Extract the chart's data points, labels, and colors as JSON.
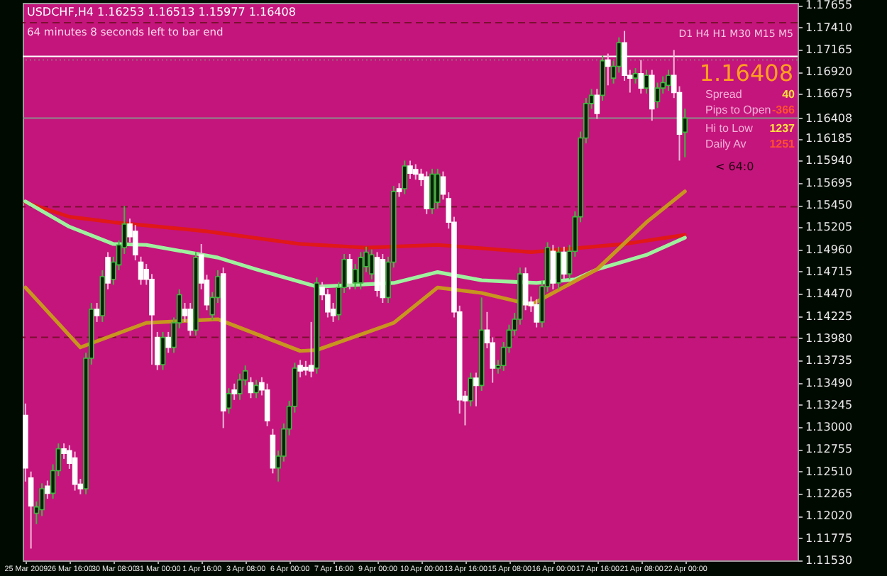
{
  "chart_data": {
    "type": "candlestick",
    "title": "USDCHF,H4  1.16253 1.16513 1.15977 1.16408",
    "categories": [
      "25 Mar 2009",
      null,
      null,
      null,
      null,
      null,
      null,
      null,
      "26 Mar 16:00",
      null,
      null,
      null,
      null,
      null,
      null,
      null,
      "30 Mar 08:00",
      null,
      null,
      null,
      null,
      null,
      null,
      null,
      "31 Mar 00:00",
      null,
      null,
      null,
      null,
      null,
      null,
      null,
      "1 Apr 16:00",
      null,
      null,
      null,
      null,
      null,
      null,
      null,
      "3 Apr 08:00",
      null,
      null,
      null,
      null,
      null,
      null,
      null,
      "6 Apr 00:00",
      null,
      null,
      null,
      null,
      null,
      null,
      null,
      "7 Apr 16:00",
      null,
      null,
      null,
      null,
      null,
      null,
      null,
      "9 Apr 00:00",
      null,
      null,
      null,
      null,
      null,
      null,
      null,
      "10 Apr 00:00",
      null,
      null,
      null,
      null,
      null,
      null,
      null,
      "13 Apr 16:00",
      null,
      null,
      null,
      null,
      null,
      null,
      null,
      "15 Apr 08:00",
      null,
      null,
      null,
      null,
      null,
      null,
      null,
      "16 Apr 00:00",
      null,
      null,
      null,
      null,
      null,
      null,
      null,
      "17 Apr 16:00",
      null,
      null,
      null,
      null,
      null,
      null,
      null,
      "21 Apr 08:00",
      null,
      null,
      null,
      null,
      null,
      null,
      null,
      "22 Apr 00:00",
      null,
      null,
      null,
      null,
      null,
      null,
      null,
      null,
      null,
      null,
      null,
      null,
      null,
      null,
      null,
      null,
      null,
      null,
      null,
      null
    ],
    "ohlc": [
      [
        1.1313,
        1.1326,
        1.124,
        1.1255
      ],
      [
        1.1244,
        1.1251,
        1.1166,
        1.1213
      ],
      [
        1.1205,
        1.1218,
        1.1193,
        1.1212
      ],
      [
        1.1209,
        1.1238,
        1.1202,
        1.1232
      ],
      [
        1.1235,
        1.1241,
        1.1221,
        1.1227
      ],
      [
        1.1227,
        1.1259,
        1.1221,
        1.1252
      ],
      [
        1.1252,
        1.1282,
        1.1246,
        1.1276
      ],
      [
        1.1276,
        1.1282,
        1.1265,
        1.1271
      ],
      [
        1.1274,
        1.128,
        1.1254,
        1.126
      ],
      [
        1.1266,
        1.1273,
        1.123,
        1.1237
      ],
      [
        1.1237,
        1.1243,
        1.1226,
        1.1232
      ],
      [
        1.1232,
        1.1382,
        1.1226,
        1.1376
      ],
      [
        1.1376,
        1.1437,
        1.1369,
        1.143
      ],
      [
        1.143,
        1.1437,
        1.1416,
        1.1423
      ],
      [
        1.1423,
        1.1473,
        1.1416,
        1.1466
      ],
      [
        1.1487,
        1.1493,
        1.1452,
        1.1459
      ],
      [
        1.1463,
        1.1488,
        1.1457,
        1.1482
      ],
      [
        1.1479,
        1.1506,
        1.1473,
        1.1501
      ],
      [
        1.1498,
        1.1544,
        1.1491,
        1.1524
      ],
      [
        1.1524,
        1.153,
        1.1504,
        1.151
      ],
      [
        1.1516,
        1.1523,
        1.1484,
        1.149
      ],
      [
        1.1482,
        1.1488,
        1.1457,
        1.1463
      ],
      [
        1.1474,
        1.148,
        1.1457,
        1.1463
      ],
      [
        1.1463,
        1.1469,
        1.1369,
        1.1424
      ],
      [
        1.1399,
        1.1405,
        1.1363,
        1.1369
      ],
      [
        1.1369,
        1.1405,
        1.1363,
        1.1399
      ],
      [
        1.1399,
        1.1405,
        1.1382,
        1.1388
      ],
      [
        1.1388,
        1.1421,
        1.1382,
        1.1415
      ],
      [
        1.1415,
        1.1452,
        1.1409,
        1.1446
      ],
      [
        1.143,
        1.1437,
        1.1416,
        1.1423
      ],
      [
        1.143,
        1.1437,
        1.1401,
        1.1407
      ],
      [
        1.1407,
        1.1493,
        1.1401,
        1.1487
      ],
      [
        1.149,
        1.1502,
        1.1452,
        1.1459
      ],
      [
        1.1462,
        1.1468,
        1.1429,
        1.1435
      ],
      [
        1.1424,
        1.1449,
        1.1418,
        1.1443
      ],
      [
        1.1443,
        1.1473,
        1.1437,
        1.1466
      ],
      [
        1.1469,
        1.1476,
        1.1299,
        1.1318
      ],
      [
        1.1321,
        1.1343,
        1.1315,
        1.1337
      ],
      [
        1.1341,
        1.1348,
        1.133,
        1.1337
      ],
      [
        1.1337,
        1.1359,
        1.133,
        1.1352
      ],
      [
        1.1352,
        1.1368,
        1.1346,
        1.1362
      ],
      [
        1.1349,
        1.1355,
        1.1332,
        1.1338
      ],
      [
        1.1338,
        1.1352,
        1.1332,
        1.1346
      ],
      [
        1.1349,
        1.1355,
        1.1335,
        1.1341
      ],
      [
        1.1341,
        1.1348,
        1.1301,
        1.1307
      ],
      [
        1.1291,
        1.1298,
        1.1249,
        1.1255
      ],
      [
        1.1255,
        1.1274,
        1.124,
        1.1268
      ],
      [
        1.1268,
        1.1304,
        1.1262,
        1.1298
      ],
      [
        1.1298,
        1.1329,
        1.1291,
        1.1323
      ],
      [
        1.1323,
        1.1371,
        1.1316,
        1.1365
      ],
      [
        1.1368,
        1.1374,
        1.1355,
        1.1362
      ],
      [
        1.1366,
        1.1373,
        1.1357,
        1.1363
      ],
      [
        1.1368,
        1.1416,
        1.1355,
        1.1362
      ],
      [
        1.1365,
        1.1465,
        1.1359,
        1.1459
      ],
      [
        1.1454,
        1.146,
        1.144,
        1.1446
      ],
      [
        1.1446,
        1.1452,
        1.1421,
        1.1427
      ],
      [
        1.143,
        1.1437,
        1.1416,
        1.1423
      ],
      [
        1.1424,
        1.146,
        1.1418,
        1.1454
      ],
      [
        1.1454,
        1.1491,
        1.1448,
        1.1485
      ],
      [
        1.1485,
        1.1491,
        1.1452,
        1.1459
      ],
      [
        1.1459,
        1.148,
        1.1452,
        1.1474
      ],
      [
        1.1459,
        1.1493,
        1.1452,
        1.1487
      ],
      [
        1.1477,
        1.1499,
        1.1471,
        1.1493
      ],
      [
        1.1469,
        1.1496,
        1.1463,
        1.149
      ],
      [
        1.1487,
        1.1493,
        1.1444,
        1.1451
      ],
      [
        1.1485,
        1.1491,
        1.1437,
        1.1443
      ],
      [
        1.1443,
        1.1488,
        1.1437,
        1.1482
      ],
      [
        1.1482,
        1.1566,
        1.1476,
        1.156
      ],
      [
        1.1563,
        1.1569,
        1.1554,
        1.156
      ],
      [
        1.1563,
        1.1594,
        1.1557,
        1.1588
      ],
      [
        1.1588,
        1.1594,
        1.1574,
        1.158
      ],
      [
        1.1584,
        1.159,
        1.1573,
        1.1579
      ],
      [
        1.1579,
        1.1585,
        1.1566,
        1.1573
      ],
      [
        1.1576,
        1.1582,
        1.1535,
        1.1541
      ],
      [
        1.1541,
        1.1585,
        1.1535,
        1.1579
      ],
      [
        1.1548,
        1.1585,
        1.1541,
        1.1579
      ],
      [
        1.1576,
        1.1582,
        1.1551,
        1.1557
      ],
      [
        1.1552,
        1.1559,
        1.1519,
        1.1526
      ],
      [
        1.1526,
        1.1532,
        1.1421,
        1.1427
      ],
      [
        1.1427,
        1.1434,
        1.1315,
        1.133
      ],
      [
        1.1334,
        1.134,
        1.1302,
        1.1329
      ],
      [
        1.1329,
        1.136,
        1.1323,
        1.1354
      ],
      [
        1.1354,
        1.136,
        1.1323,
        1.1346
      ],
      [
        1.1346,
        1.1443,
        1.134,
        1.1407
      ],
      [
        1.1407,
        1.1427,
        1.1387,
        1.1393
      ],
      [
        1.1393,
        1.1399,
        1.1349,
        1.1365
      ],
      [
        1.1365,
        1.1374,
        1.1359,
        1.1368
      ],
      [
        1.1368,
        1.1394,
        1.1362,
        1.1388
      ],
      [
        1.1388,
        1.1413,
        1.1382,
        1.1407
      ],
      [
        1.1407,
        1.1426,
        1.1401,
        1.1419
      ],
      [
        1.1419,
        1.1476,
        1.1413,
        1.1469
      ],
      [
        1.1469,
        1.1476,
        1.1429,
        1.1435
      ],
      [
        1.1438,
        1.1444,
        1.1427,
        1.1434
      ],
      [
        1.1435,
        1.1441,
        1.141,
        1.1416
      ],
      [
        1.1416,
        1.1462,
        1.141,
        1.1455
      ],
      [
        1.1455,
        1.1504,
        1.1449,
        1.1498
      ],
      [
        1.1494,
        1.1501,
        1.1452,
        1.1459
      ],
      [
        1.1459,
        1.1499,
        1.1452,
        1.1493
      ],
      [
        1.1493,
        1.1499,
        1.1463,
        1.1469
      ],
      [
        1.1469,
        1.1501,
        1.1463,
        1.1494
      ],
      [
        1.1494,
        1.1538,
        1.1488,
        1.1532
      ],
      [
        1.1532,
        1.1626,
        1.1526,
        1.1619
      ],
      [
        1.1619,
        1.1663,
        1.1613,
        1.1657
      ],
      [
        1.1657,
        1.1673,
        1.1651,
        1.1666
      ],
      [
        1.1666,
        1.1673,
        1.164,
        1.1646
      ],
      [
        1.1666,
        1.171,
        1.166,
        1.1704
      ],
      [
        1.1705,
        1.1712,
        1.1677,
        1.1698
      ],
      [
        1.1685,
        1.1704,
        1.1679,
        1.1698
      ],
      [
        1.1698,
        1.173,
        1.1691,
        1.1724
      ],
      [
        1.1724,
        1.1737,
        1.1682,
        1.1688
      ],
      [
        1.1688,
        1.1694,
        1.1669,
        1.1685
      ],
      [
        1.1685,
        1.1696,
        1.1679,
        1.169
      ],
      [
        1.169,
        1.1705,
        1.1668,
        1.1674
      ],
      [
        1.1674,
        1.1694,
        1.1668,
        1.1688
      ],
      [
        1.1688,
        1.1694,
        1.1638,
        1.1651
      ],
      [
        1.1659,
        1.168,
        1.1652,
        1.1674
      ],
      [
        1.1674,
        1.1687,
        1.1668,
        1.168
      ],
      [
        1.1677,
        1.1694,
        1.1671,
        1.1688
      ],
      [
        1.1688,
        1.1716,
        1.1663,
        1.1669
      ],
      [
        1.1669,
        1.1676,
        1.1594,
        1.1623
      ],
      [
        1.16253,
        1.16513,
        1.15977,
        1.16408
      ],
      null,
      null,
      null,
      null,
      null,
      null,
      null,
      null,
      null,
      null,
      null,
      null,
      null,
      null,
      null,
      null,
      null,
      null,
      null,
      null
    ],
    "series": [
      {
        "type": "line",
        "color": "#e01818",
        "values": [
          1.1548,
          null,
          null,
          null,
          null,
          null,
          null,
          null,
          1.1532,
          null,
          null,
          null,
          null,
          null,
          null,
          null,
          1.1526,
          null,
          null,
          null,
          null,
          null,
          null,
          null,
          null,
          null,
          null,
          null,
          null,
          null,
          null,
          null,
          null,
          1.1516,
          null,
          null,
          null,
          null,
          null,
          null,
          null,
          null,
          null,
          null,
          null,
          null,
          null,
          null,
          null,
          null,
          1.1502,
          null,
          null,
          null,
          null,
          null,
          null,
          null,
          null,
          null,
          null,
          null,
          1.1498,
          null,
          null,
          null,
          null,
          null,
          null,
          null,
          null,
          null,
          null,
          null,
          null,
          1.1501,
          null,
          null,
          null,
          null,
          null,
          null,
          null,
          null,
          null,
          null,
          null,
          null,
          null,
          null,
          null,
          null,
          1.1493,
          null,
          null,
          null,
          null,
          null,
          null,
          null,
          null,
          null,
          null,
          null,
          null,
          null,
          null,
          null,
          null,
          1.1502,
          null,
          null,
          null,
          null,
          null,
          null,
          null,
          null,
          null,
          null,
          1.1512,
          null,
          null,
          null,
          null,
          null,
          null,
          null,
          null,
          null,
          null,
          null,
          null,
          null,
          null,
          null,
          null,
          null,
          null,
          null,
          null
        ]
      },
      {
        "type": "line",
        "color": "#9ef29e",
        "values": [
          1.1549,
          null,
          null,
          null,
          null,
          null,
          null,
          null,
          1.1521,
          null,
          null,
          null,
          null,
          null,
          null,
          null,
          1.1502,
          null,
          null,
          null,
          null,
          null,
          1.1501,
          null,
          null,
          null,
          null,
          null,
          null,
          null,
          null,
          null,
          null,
          null,
          null,
          1.1487,
          null,
          null,
          null,
          null,
          null,
          null,
          1.1474,
          null,
          null,
          null,
          null,
          null,
          null,
          null,
          null,
          null,
          null,
          1.1455,
          null,
          null,
          null,
          null,
          null,
          null,
          null,
          null,
          null,
          null,
          null,
          null,
          null,
          1.1459,
          null,
          null,
          null,
          null,
          null,
          null,
          null,
          1.1471,
          null,
          null,
          null,
          null,
          null,
          null,
          null,
          1.1462,
          null,
          null,
          null,
          null,
          null,
          null,
          null,
          null,
          null,
          1.1459,
          null,
          null,
          null,
          null,
          null,
          null,
          1.1463,
          null,
          null,
          null,
          1.1474,
          null,
          null,
          null,
          null,
          null,
          null,
          null,
          null,
          1.149,
          null,
          null,
          null,
          null,
          null,
          null,
          1.1509,
          null,
          null,
          null,
          null,
          null,
          null,
          null,
          null,
          null,
          null,
          null,
          null,
          null,
          null,
          null,
          null,
          null,
          null,
          null,
          null
        ]
      },
      {
        "type": "line",
        "color": "#c8961e",
        "values": [
          1.1454,
          null,
          null,
          null,
          null,
          null,
          null,
          null,
          null,
          null,
          1.1388,
          null,
          null,
          null,
          null,
          null,
          null,
          null,
          null,
          null,
          null,
          null,
          1.1415,
          null,
          null,
          null,
          null,
          null,
          null,
          null,
          null,
          null,
          null,
          null,
          null,
          1.1419,
          null,
          null,
          null,
          null,
          null,
          null,
          null,
          null,
          null,
          null,
          null,
          null,
          null,
          null,
          1.1384,
          null,
          null,
          1.1385,
          null,
          null,
          null,
          null,
          null,
          null,
          null,
          null,
          null,
          null,
          null,
          null,
          null,
          1.1415,
          null,
          null,
          null,
          null,
          null,
          null,
          null,
          1.1454,
          null,
          null,
          null,
          null,
          null,
          null,
          null,
          1.1448,
          null,
          null,
          null,
          null,
          null,
          null,
          null,
          null,
          1.1435,
          null,
          null,
          null,
          null,
          null,
          null,
          null,
          null,
          null,
          null,
          null,
          1.1474,
          null,
          null,
          null,
          null,
          null,
          null,
          null,
          null,
          1.1526,
          null,
          null,
          null,
          null,
          null,
          null,
          1.156,
          null,
          null,
          null,
          null,
          null,
          null,
          null,
          null,
          null,
          null,
          null,
          null,
          null,
          null,
          null,
          null,
          null,
          null,
          null,
          null
        ]
      }
    ],
    "ylim": [
      1.1153,
      1.1768
    ],
    "yticks": [
      1.17655,
      {
        "value": 1.1741,
        "label": "1.17410"
      },
      1.17165,
      {
        "value": 1.1692,
        "label": "1.16920"
      },
      1.16675,
      1.16408,
      1.16185,
      {
        "value": 1.1594,
        "label": "1.15940"
      },
      1.15695,
      {
        "value": 1.1545,
        "label": "1.15450"
      },
      1.15205,
      {
        "value": 1.1496,
        "label": "1.14960"
      },
      1.14715,
      {
        "value": 1.1447,
        "label": "1.14470"
      },
      1.14225,
      {
        "value": 1.1398,
        "label": "1.13980"
      },
      1.13735,
      {
        "value": 1.1349,
        "label": "1.13490"
      },
      1.13245,
      {
        "value": 1.13,
        "label": "1.13000"
      },
      1.12755,
      {
        "value": 1.1251,
        "label": "1.12510"
      },
      1.12265,
      {
        "value": 1.1202,
        "label": "1.12020"
      },
      1.11775,
      {
        "value": 1.1153,
        "label": "1.11530"
      }
    ],
    "ref_lines": [
      {
        "axis": "y",
        "value": 1.1746,
        "color": "#7a1030",
        "line_style": "dashed"
      },
      {
        "axis": "y",
        "value": 1.1543,
        "color": "#7a1030",
        "line_style": "dashed"
      },
      {
        "axis": "y",
        "value": 1.1399,
        "color": "#7a1030",
        "line_style": "dashed"
      },
      {
        "axis": "y",
        "value": 1.1709,
        "color": "#ffffff",
        "line_style": "solid"
      },
      {
        "axis": "y",
        "value": 1.1705,
        "color": "#9a6a80",
        "line_style": "dotted"
      },
      {
        "axis": "y",
        "value": 1.16408,
        "color": "#8c8c8c",
        "line_style": "solid"
      }
    ],
    "annotations": [
      "64 minutes 8 seconds left to bar end",
      "D1 H4 H1 M30 M15 M5",
      "1.16408",
      "Spread",
      "40",
      "Pips to Open",
      "-366",
      "Hi to Low",
      "1237",
      "Daily Av",
      "1251",
      "< 64:0"
    ],
    "grid": false
  }
}
